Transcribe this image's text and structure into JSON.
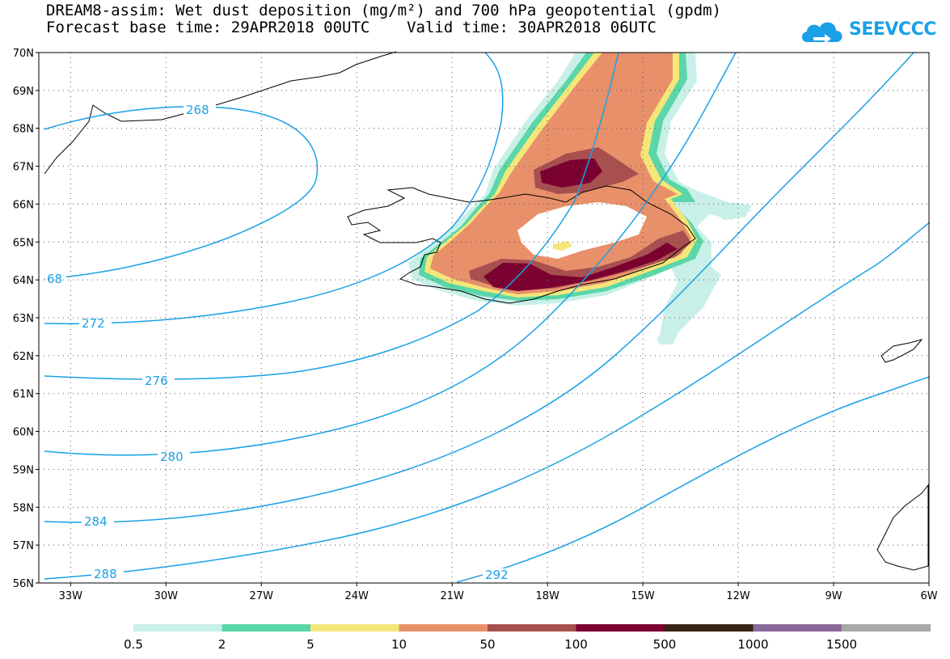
{
  "title": {
    "line1": "DREAM8-assim: Wet dust deposition (mg/m²) and 700 hPa geopotential (gpdm)",
    "line2": "Forecast base time: 29APR2018 00UTC    Valid time: 30APR2018 06UTC"
  },
  "logo": {
    "text": "SEEVCCC",
    "icon": "cloud-icon"
  },
  "map": {
    "lat_range": [
      56,
      70
    ],
    "lon_range": [
      -34,
      -6
    ],
    "lat_ticks": [
      "70N",
      "69N",
      "68N",
      "67N",
      "66N",
      "65N",
      "64N",
      "63N",
      "62N",
      "61N",
      "60N",
      "59N",
      "58N",
      "57N",
      "56N"
    ],
    "lon_ticks": [
      "33W",
      "30W",
      "27W",
      "24W",
      "21W",
      "18W",
      "15W",
      "12W",
      "9W",
      "6W"
    ],
    "contour_color": "#1aa0e6",
    "contour_labels": [
      "268",
      "68",
      "272",
      "276",
      "280",
      "284",
      "288",
      "292"
    ]
  },
  "legend": {
    "thresholds": [
      "0.5",
      "2",
      "5",
      "10",
      "50",
      "100",
      "500",
      "1000",
      "1500"
    ],
    "colors": [
      "#c8f0e8",
      "#5ad6a8",
      "#f5e67a",
      "#e8906a",
      "#a85050",
      "#7a0030",
      "#3a2418",
      "#8a6a9a",
      "#a8a8a8"
    ]
  }
}
